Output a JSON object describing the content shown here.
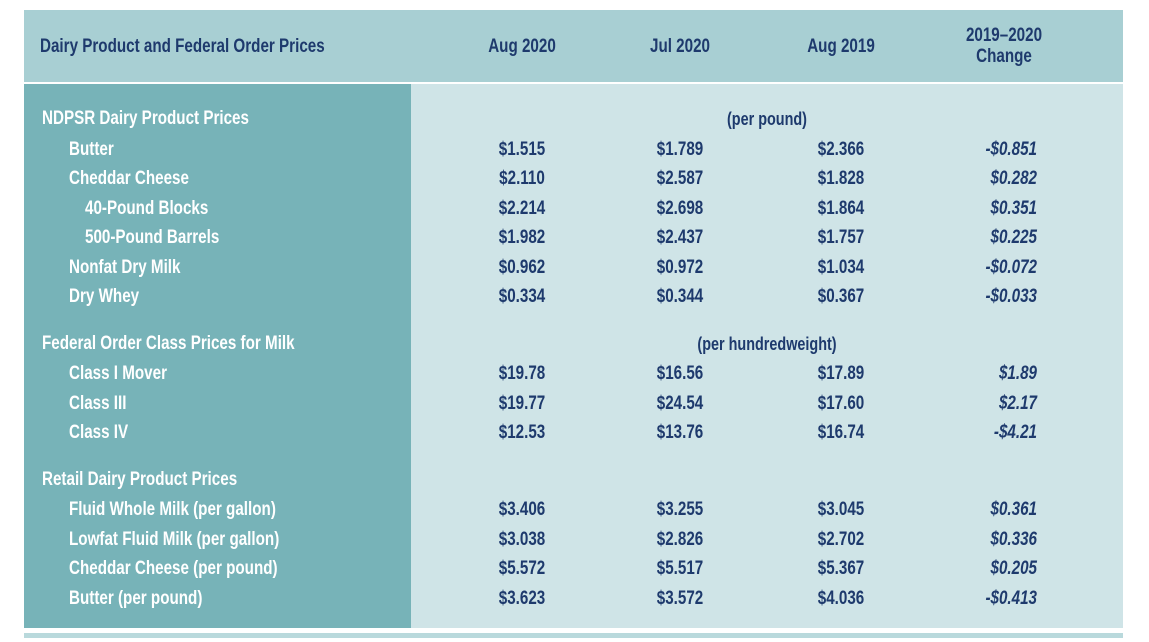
{
  "header": {
    "title": "Dairy Product and Federal Order Prices",
    "columns": [
      "Aug 2020",
      "Jul 2020",
      "Aug 2019",
      "2019–2020 Change"
    ]
  },
  "sections": [
    {
      "title": "NDPSR Dairy Product Prices",
      "unit": "(per pound)",
      "rows": [
        {
          "label": "Butter",
          "values": [
            "$1.515",
            "$1.789",
            "$2.366",
            "-$0.851"
          ]
        },
        {
          "label": "Cheddar Cheese",
          "values": [
            "$2.110",
            "$2.587",
            "$1.828",
            "$0.282"
          ],
          "rows": [
            {
              "label": "40-Pound Blocks",
              "values": [
                "$2.214",
                "$2.698",
                "$1.864",
                "$0.351"
              ]
            },
            {
              "label": "500-Pound Barrels",
              "values": [
                "$1.982",
                "$2.437",
                "$1.757",
                "$0.225"
              ]
            }
          ]
        },
        {
          "label": "Nonfat Dry Milk",
          "values": [
            "$0.962",
            "$0.972",
            "$1.034",
            "-$0.072"
          ]
        },
        {
          "label": "Dry Whey",
          "values": [
            "$0.334",
            "$0.344",
            "$0.367",
            "-$0.033"
          ]
        }
      ]
    },
    {
      "title": "Federal Order Class Prices for Milk",
      "unit": "(per hundredweight)",
      "rows": [
        {
          "label": "Class I Mover",
          "values": [
            "$19.78",
            "$16.56",
            "$17.89",
            "$1.89"
          ]
        },
        {
          "label": "Class III",
          "values": [
            "$19.77",
            "$24.54",
            "$17.60",
            "$2.17"
          ]
        },
        {
          "label": "Class IV",
          "values": [
            "$12.53",
            "$13.76",
            "$16.74",
            "-$4.21"
          ]
        }
      ]
    },
    {
      "title": "Retail Dairy Product Prices",
      "rows": [
        {
          "label": "Fluid Whole Milk (per gallon)",
          "values": [
            "$3.406",
            "$3.255",
            "$3.045",
            "$0.361"
          ]
        },
        {
          "label": "Lowfat Fluid Milk (per gallon)",
          "values": [
            "$3.038",
            "$2.826",
            "$2.702",
            "$0.336"
          ]
        },
        {
          "label": "Cheddar Cheese (per pound)",
          "values": [
            "$5.572",
            "$5.517",
            "$5.367",
            "$0.205"
          ]
        },
        {
          "label": "Butter (per pound)",
          "values": [
            "$3.623",
            "$3.572",
            "$4.036",
            "-$0.413"
          ]
        }
      ]
    }
  ]
}
